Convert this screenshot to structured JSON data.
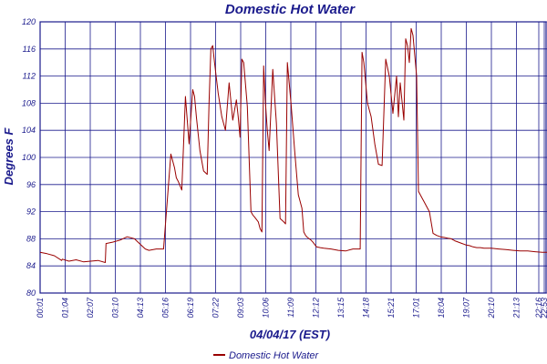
{
  "chart_data": {
    "type": "line",
    "title": "Domestic Hot Water",
    "xlabel": "04/04/17 (EST)",
    "ylabel": "Degrees F",
    "ylim": [
      80,
      120
    ],
    "yticks": [
      80,
      84,
      88,
      92,
      96,
      100,
      104,
      108,
      112,
      116,
      120
    ],
    "xlim": [
      1,
      1393
    ],
    "xtick_labels": [
      "00:01",
      "01:04",
      "02:07",
      "03:10",
      "04:13",
      "05:16",
      "06:19",
      "07:22",
      "09:03",
      "10:06",
      "11:09",
      "12:12",
      "13:15",
      "14:18",
      "15:21",
      "17:01",
      "18:04",
      "19:07",
      "20:10",
      "21:13",
      "22:16",
      "22:53"
    ],
    "grid": true,
    "legend_position": "bottom-center",
    "colors": {
      "line": "#990000",
      "grid": "#1a1a8c",
      "text": "#1a1a8c"
    },
    "series": [
      {
        "name": "Domestic Hot Water",
        "x": [
          1,
          20,
          40,
          60,
          62,
          80,
          100,
          120,
          140,
          160,
          180,
          182,
          200,
          220,
          240,
          260,
          270,
          290,
          300,
          320,
          340,
          360,
          370,
          375,
          380,
          390,
          400,
          410,
          420,
          425,
          430,
          440,
          450,
          460,
          465,
          470,
          475,
          480,
          490,
          500,
          510,
          520,
          530,
          540,
          545,
          550,
          555,
          560,
          570,
          580,
          585,
          590,
          600,
          605,
          610,
          615,
          620,
          625,
          630,
          640,
          650,
          660,
          670,
          675,
          680,
          690,
          700,
          710,
          715,
          720,
          725,
          730,
          735,
          740,
          745,
          750,
          760,
          770,
          780,
          800,
          820,
          840,
          860,
          880,
          885,
          890,
          900,
          910,
          920,
          930,
          940,
          950,
          960,
          970,
          980,
          985,
          990,
          1000,
          1005,
          1010,
          1015,
          1020,
          1025,
          1030,
          1035,
          1040,
          1045,
          1050,
          1055,
          1060,
          1065,
          1070,
          1080,
          1090,
          1100,
          1110,
          1120,
          1130,
          1140,
          1150,
          1160,
          1170,
          1180,
          1190,
          1200,
          1210,
          1220,
          1230,
          1240,
          1260,
          1280,
          1300,
          1320,
          1340,
          1360,
          1380,
          1393
        ],
        "values": [
          86,
          85.8,
          85.5,
          84.8,
          85,
          84.7,
          84.9,
          84.6,
          84.7,
          84.8,
          84.5,
          87.3,
          87.5,
          87.8,
          88.3,
          88.0,
          87.5,
          86.5,
          86.3,
          86.5,
          86.5,
          100.5,
          98.5,
          97,
          96.5,
          95.2,
          109,
          102,
          110,
          109,
          106,
          101,
          98,
          97.5,
          108,
          116,
          116.5,
          114,
          109.5,
          106,
          104,
          111,
          105.5,
          108.5,
          106,
          103,
          114.5,
          114,
          107.5,
          92,
          91.5,
          91.2,
          90.5,
          89.5,
          89,
          113.5,
          108,
          104,
          101,
          113,
          105,
          91,
          90.5,
          90.2,
          114,
          108,
          101,
          94.5,
          93.5,
          92.5,
          89,
          88.5,
          88.2,
          88,
          87.8,
          87.5,
          86.8,
          86.7,
          86.6,
          86.5,
          86.3,
          86.2,
          86.5,
          86.5,
          115.5,
          114,
          108,
          106,
          102,
          99,
          98.8,
          114.5,
          112,
          106.5,
          112,
          106,
          111,
          105.5,
          117.5,
          116.5,
          114,
          119,
          118,
          115,
          112,
          95,
          94.5,
          94,
          93.5,
          93,
          92.5,
          92,
          88.8,
          88.5,
          88.3,
          88.2,
          88.1,
          88.0,
          87.7,
          87.5,
          87.3,
          87.1,
          87,
          86.8,
          86.7,
          86.7,
          86.6,
          86.6,
          86.6,
          86.5,
          86.4,
          86.3,
          86.2,
          86.2,
          86.1,
          86.0,
          86.0
        ]
      }
    ]
  }
}
